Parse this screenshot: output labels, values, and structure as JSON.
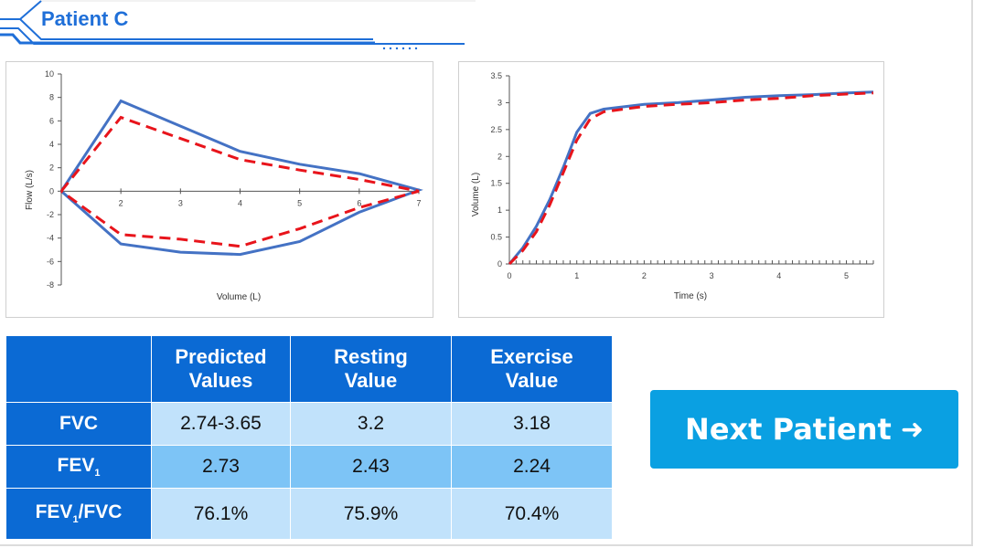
{
  "header": {
    "title": "Patient C"
  },
  "flow_chart": {
    "chart_data": {
      "type": "line",
      "xlabel": "Volume (L)",
      "ylabel": "Flow (L/s)",
      "xlim": [
        1,
        7
      ],
      "ylim": [
        -8,
        10
      ],
      "xticks": [
        2,
        3,
        4,
        5,
        6,
        7
      ],
      "yticks": [
        -8,
        -6,
        -4,
        -2,
        0,
        2,
        4,
        6,
        8,
        10
      ],
      "series": [
        {
          "name": "Resting",
          "style": "solid",
          "color": "#4472c4",
          "x": [
            1,
            2,
            4,
            5,
            6,
            7,
            6,
            5,
            4,
            3,
            2,
            1
          ],
          "y": [
            0,
            7.7,
            3.4,
            2.3,
            1.5,
            0.1,
            -1.8,
            -4.3,
            -5.4,
            -5.2,
            -4.5,
            0
          ]
        },
        {
          "name": "Exercise",
          "style": "dashed",
          "color": "#e8141b",
          "x": [
            1,
            2,
            4,
            5,
            6,
            7,
            6,
            5,
            4,
            3,
            2,
            1
          ],
          "y": [
            0,
            6.3,
            2.7,
            1.8,
            1.0,
            0,
            -1.4,
            -3.2,
            -4.7,
            -4.1,
            -3.7,
            0
          ]
        }
      ]
    }
  },
  "volume_chart": {
    "chart_data": {
      "type": "line",
      "xlabel": "Time (s)",
      "ylabel": "Volume (L)",
      "xlim": [
        0,
        5.4
      ],
      "ylim": [
        0,
        3.5
      ],
      "xticks": [
        0,
        1,
        2,
        3,
        4,
        5
      ],
      "yticks": [
        0,
        0.5,
        1,
        1.5,
        2,
        2.5,
        3,
        3.5
      ],
      "series": [
        {
          "name": "Resting",
          "style": "solid",
          "color": "#4472c4",
          "x": [
            0,
            0.2,
            0.4,
            0.6,
            0.8,
            1.0,
            1.2,
            1.4,
            2.0,
            2.5,
            3.0,
            3.5,
            4.0,
            4.5,
            5.0,
            5.4
          ],
          "y": [
            0,
            0.3,
            0.7,
            1.2,
            1.8,
            2.45,
            2.8,
            2.88,
            2.97,
            3.0,
            3.05,
            3.1,
            3.13,
            3.15,
            3.18,
            3.2
          ]
        },
        {
          "name": "Exercise",
          "style": "dashed",
          "color": "#e8141b",
          "x": [
            0,
            0.2,
            0.4,
            0.6,
            0.8,
            1.0,
            1.2,
            1.4,
            2.0,
            2.5,
            3.0,
            3.5,
            4.0,
            4.5,
            5.0,
            5.4
          ],
          "y": [
            0,
            0.25,
            0.6,
            1.1,
            1.7,
            2.3,
            2.7,
            2.83,
            2.93,
            2.97,
            3.0,
            3.05,
            3.08,
            3.13,
            3.16,
            3.18
          ]
        }
      ]
    }
  },
  "table": {
    "headers": {
      "predicted": [
        "Predicted",
        "Values"
      ],
      "resting": [
        "Resting",
        "Value"
      ],
      "exercise": [
        "Exercise",
        "Value"
      ]
    },
    "rows": [
      {
        "label": "FVC",
        "predicted": "2.74-3.65",
        "resting": "3.2",
        "exercise": "3.18"
      },
      {
        "label_main": "FEV",
        "label_sub": "1",
        "predicted": "2.73",
        "resting": "2.43",
        "exercise": "2.24"
      },
      {
        "label_main": "FEV",
        "label_sub": "1",
        "label_rest": "/FVC",
        "predicted": "76.1%",
        "resting": "75.9%",
        "exercise": "70.4%"
      }
    ]
  },
  "next_button": {
    "label": "Next Patient",
    "icon": "arrow-right-icon"
  }
}
